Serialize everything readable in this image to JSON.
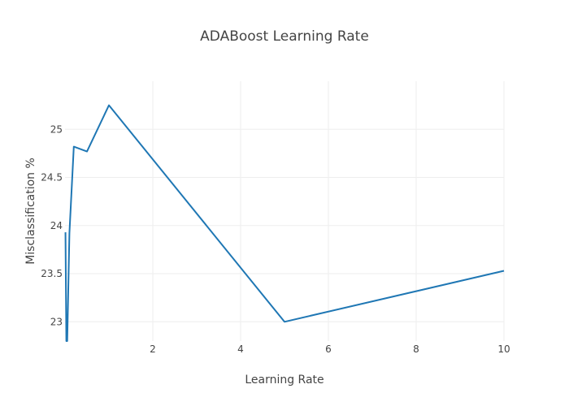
{
  "chart_data": {
    "type": "line",
    "title": "ADABoost Learning Rate",
    "xlabel": "Learning Rate",
    "ylabel": "Misclassification %",
    "xlim": [
      0,
      10
    ],
    "ylim": [
      22.8,
      25.5
    ],
    "xticks": [
      2,
      4,
      6,
      8,
      10
    ],
    "yticks": [
      23,
      23.5,
      24,
      24.5,
      25
    ],
    "x_tick_labels": [
      "2",
      "4",
      "6",
      "8",
      "10"
    ],
    "y_tick_labels": [
      "23",
      "23.5",
      "24",
      "24.5",
      "25"
    ],
    "grid": true,
    "line_color": "#1f77b4",
    "series": [
      {
        "x": [
          0.01,
          0.03,
          0.05,
          0.1,
          0.2,
          0.5,
          1,
          5,
          10
        ],
        "y": [
          23.93,
          22.8,
          22.8,
          23.92,
          24.82,
          24.77,
          25.25,
          23.0,
          23.53
        ]
      }
    ]
  }
}
